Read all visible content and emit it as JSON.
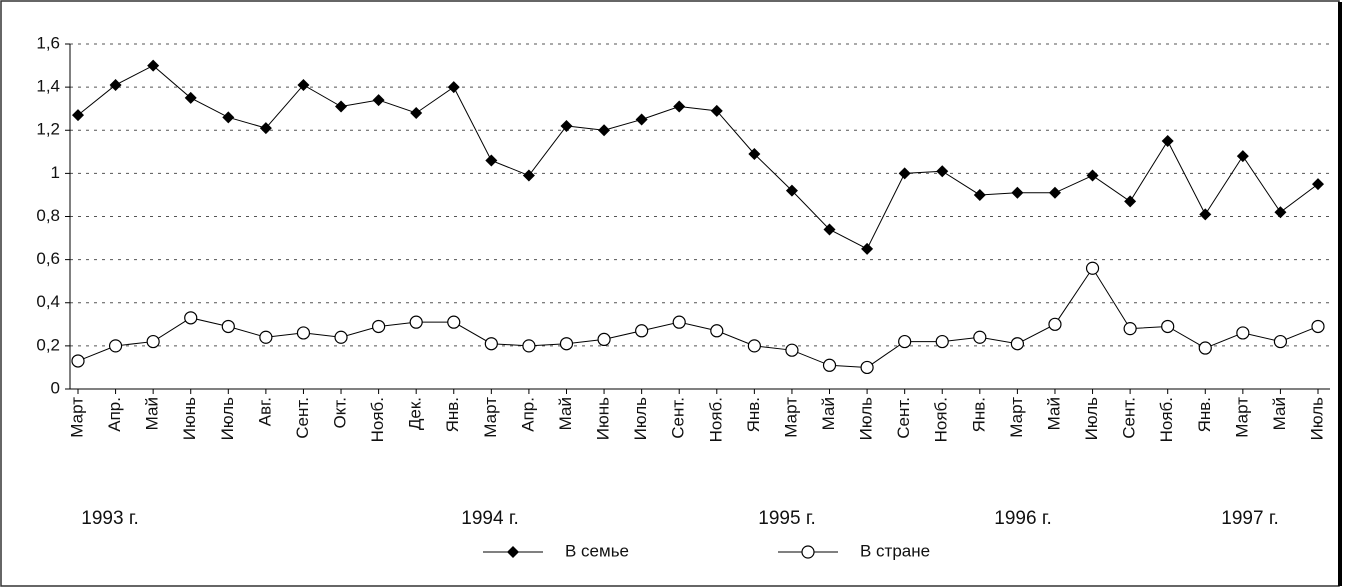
{
  "chart_data": {
    "type": "line",
    "categories": [
      "Март",
      "Апр.",
      "Май",
      "Июнь",
      "Июль",
      "Авг.",
      "Сент.",
      "Окт.",
      "Нояб.",
      "Дек.",
      "Янв.",
      "Март",
      "Апр.",
      "Май",
      "Июнь",
      "Июль",
      "Сент.",
      "Нояб.",
      "Янв.",
      "Март",
      "Май",
      "Июль",
      "Сент.",
      "Нояб.",
      "Янв.",
      "Март",
      "Май",
      "Июль",
      "Сент.",
      "Нояб.",
      "Янв.",
      "Март",
      "Май",
      "Июль"
    ],
    "series": [
      {
        "name": "В семье",
        "color": "#000000",
        "marker": "diamond",
        "values": [
          1.27,
          1.41,
          1.5,
          1.35,
          1.26,
          1.21,
          1.41,
          1.31,
          1.34,
          1.28,
          1.4,
          1.06,
          0.99,
          1.22,
          1.2,
          1.25,
          1.31,
          1.29,
          1.09,
          0.92,
          0.74,
          0.65,
          1.0,
          1.01,
          0.9,
          0.91,
          0.91,
          0.99,
          0.87,
          1.15,
          0.81,
          1.08,
          0.82,
          0.95
        ]
      },
      {
        "name": "В стране",
        "color": "#000000",
        "marker": "circle",
        "values": [
          0.13,
          0.2,
          0.22,
          0.33,
          0.29,
          0.24,
          0.26,
          0.24,
          0.29,
          0.31,
          0.31,
          0.21,
          0.2,
          0.21,
          0.23,
          0.27,
          0.31,
          0.27,
          0.2,
          0.18,
          0.11,
          0.1,
          0.22,
          0.22,
          0.24,
          0.21,
          0.3,
          0.56,
          0.28,
          0.29,
          0.19,
          0.26,
          0.22,
          0.29
        ]
      }
    ],
    "year_labels": [
      "1993 г.",
      "1994 г.",
      "1995 г.",
      "1996 г.",
      "1997 г."
    ],
    "ylim": [
      0,
      1.6
    ],
    "yticks": [
      0,
      {
        "value": 0.2,
        "label": "0,2"
      },
      {
        "value": 0.4,
        "label": "0,4"
      },
      {
        "value": 0.6,
        "label": "0,6"
      },
      {
        "value": 0.8,
        "label": "0,8"
      },
      1,
      {
        "value": 1.2,
        "label": "1,2"
      },
      {
        "value": 1.4,
        "label": "1,4"
      },
      {
        "value": 1.6,
        "label": "1,6"
      }
    ],
    "grid": true,
    "legend": "bottom"
  }
}
